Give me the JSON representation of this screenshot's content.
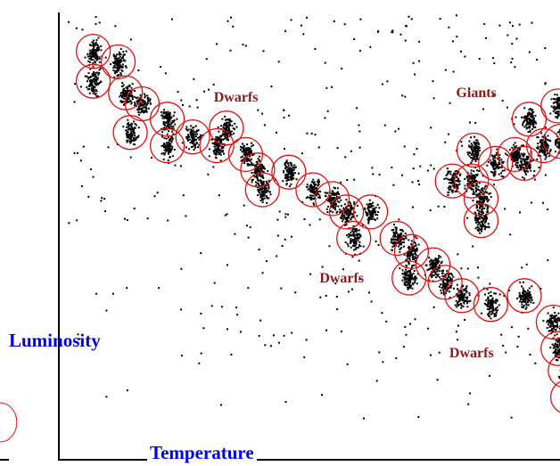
{
  "chart_data": {
    "type": "scatter",
    "title": "",
    "xlabel": "Temperature",
    "ylabel": "Luminosity",
    "xlim": [
      0,
      100
    ],
    "ylim": [
      0,
      100
    ],
    "grid": false,
    "legend": "none",
    "colors": {
      "points": "#000000",
      "circles": "#e01010",
      "region_labels": "#8b1a1a",
      "axis_labels": "#0000ee",
      "axes": "#000000"
    },
    "annotations": [
      {
        "text": "Dwarfs",
        "x": 35,
        "y": 80
      },
      {
        "text": "Giants",
        "x": 85,
        "y": 81
      },
      {
        "text": "Dwarfs",
        "x": 57,
        "y": 39
      },
      {
        "text": "Dwarfs",
        "x": 84,
        "y": 22
      }
    ],
    "clusters": [
      {
        "x": 5.3,
        "y": 91.4
      },
      {
        "x": 5.3,
        "y": 84.6
      },
      {
        "x": 10.5,
        "y": 89.0
      },
      {
        "x": 12.0,
        "y": 82.0
      },
      {
        "x": 13.0,
        "y": 73.0
      },
      {
        "x": 15.5,
        "y": 79.5
      },
      {
        "x": 20.7,
        "y": 76.0
      },
      {
        "x": 20.7,
        "y": 70.0
      },
      {
        "x": 26.0,
        "y": 72.0
      },
      {
        "x": 31.0,
        "y": 70.0
      },
      {
        "x": 33.0,
        "y": 74.0
      },
      {
        "x": 37.0,
        "y": 68.0
      },
      {
        "x": 39.5,
        "y": 64.5
      },
      {
        "x": 40.5,
        "y": 60.0
      },
      {
        "x": 46.0,
        "y": 64.0
      },
      {
        "x": 51.0,
        "y": 60.0
      },
      {
        "x": 55.0,
        "y": 58.0
      },
      {
        "x": 58.0,
        "y": 55.0
      },
      {
        "x": 59.5,
        "y": 49.0
      },
      {
        "x": 63.0,
        "y": 55.0
      },
      {
        "x": 68.5,
        "y": 49.0
      },
      {
        "x": 71.5,
        "y": 46.0
      },
      {
        "x": 71.0,
        "y": 40.0
      },
      {
        "x": 76.0,
        "y": 43.0
      },
      {
        "x": 78.5,
        "y": 39.0
      },
      {
        "x": 80.0,
        "y": 62.0
      },
      {
        "x": 84.0,
        "y": 62.0
      },
      {
        "x": 86.0,
        "y": 58.0
      },
      {
        "x": 84.5,
        "y": 69.0
      },
      {
        "x": 89.0,
        "y": 66.0
      },
      {
        "x": 95.0,
        "y": 66.0
      },
      {
        "x": 99.0,
        "y": 70.0
      },
      {
        "x": 102.0,
        "y": 79.0
      },
      {
        "x": 102.5,
        "y": 71.0
      },
      {
        "x": 96.0,
        "y": 76.0
      },
      {
        "x": 93.0,
        "y": 68.0
      },
      {
        "x": 86.0,
        "y": 53.0
      },
      {
        "x": 95.0,
        "y": 36.0
      },
      {
        "x": 101.0,
        "y": 30.0
      },
      {
        "x": 102.0,
        "y": 24.0
      },
      {
        "x": 103.5,
        "y": 19.0
      },
      {
        "x": 104.0,
        "y": 13.0
      },
      {
        "x": 82.0,
        "y": 36.0
      },
      {
        "x": 88.0,
        "y": 34.0
      }
    ]
  }
}
